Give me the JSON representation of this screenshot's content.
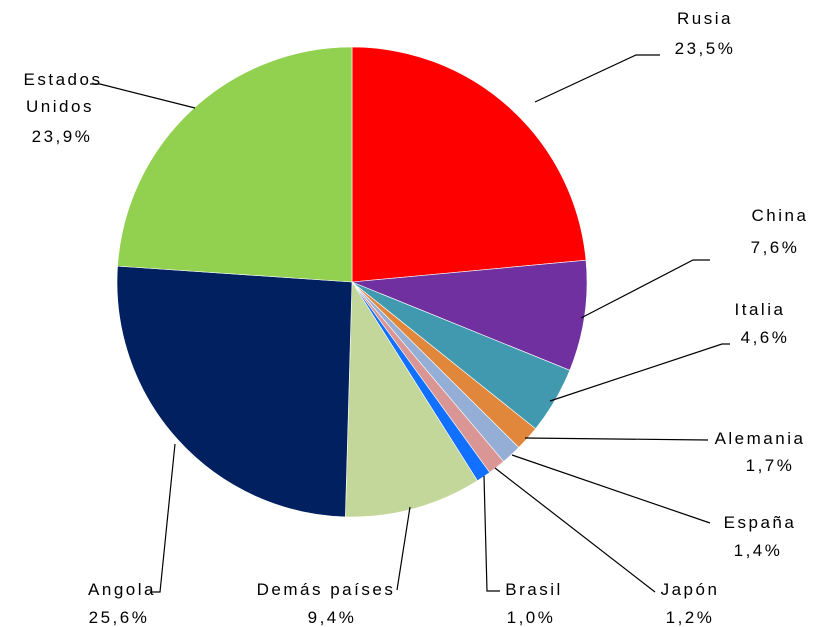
{
  "chart_data": {
    "type": "pie",
    "title": "",
    "start_angle_deg": 0,
    "direction": "clockwise",
    "slices": [
      {
        "label": "Rusia",
        "value": 23.5,
        "value_label": "23,5%",
        "color": "#ff0000"
      },
      {
        "label": "China",
        "value": 7.6,
        "value_label": "7,6%",
        "color": "#7030a0"
      },
      {
        "label": "Italia",
        "value": 4.6,
        "value_label": "4,6%",
        "color": "#4199b0"
      },
      {
        "label": "Alemania",
        "value": 1.7,
        "value_label": "1,7%",
        "color": "#e0873c"
      },
      {
        "label": "España",
        "value": 1.4,
        "value_label": "1,4%",
        "color": "#94aed6"
      },
      {
        "label": "Japón",
        "value": 1.2,
        "value_label": "1,2%",
        "color": "#d99694"
      },
      {
        "label": "Brasil",
        "value": 1.0,
        "value_label": "1,0%",
        "color": "#1170ff"
      },
      {
        "label": "Demás países",
        "value": 9.4,
        "value_label": "9,4%",
        "color": "#c4d79b"
      },
      {
        "label": "Angola",
        "value": 25.6,
        "value_label": "25,6%",
        "color": "#002060"
      },
      {
        "label": "Estados Unidos",
        "value": 23.9,
        "value_label": "23,9%",
        "color": "#92d050"
      }
    ]
  }
}
